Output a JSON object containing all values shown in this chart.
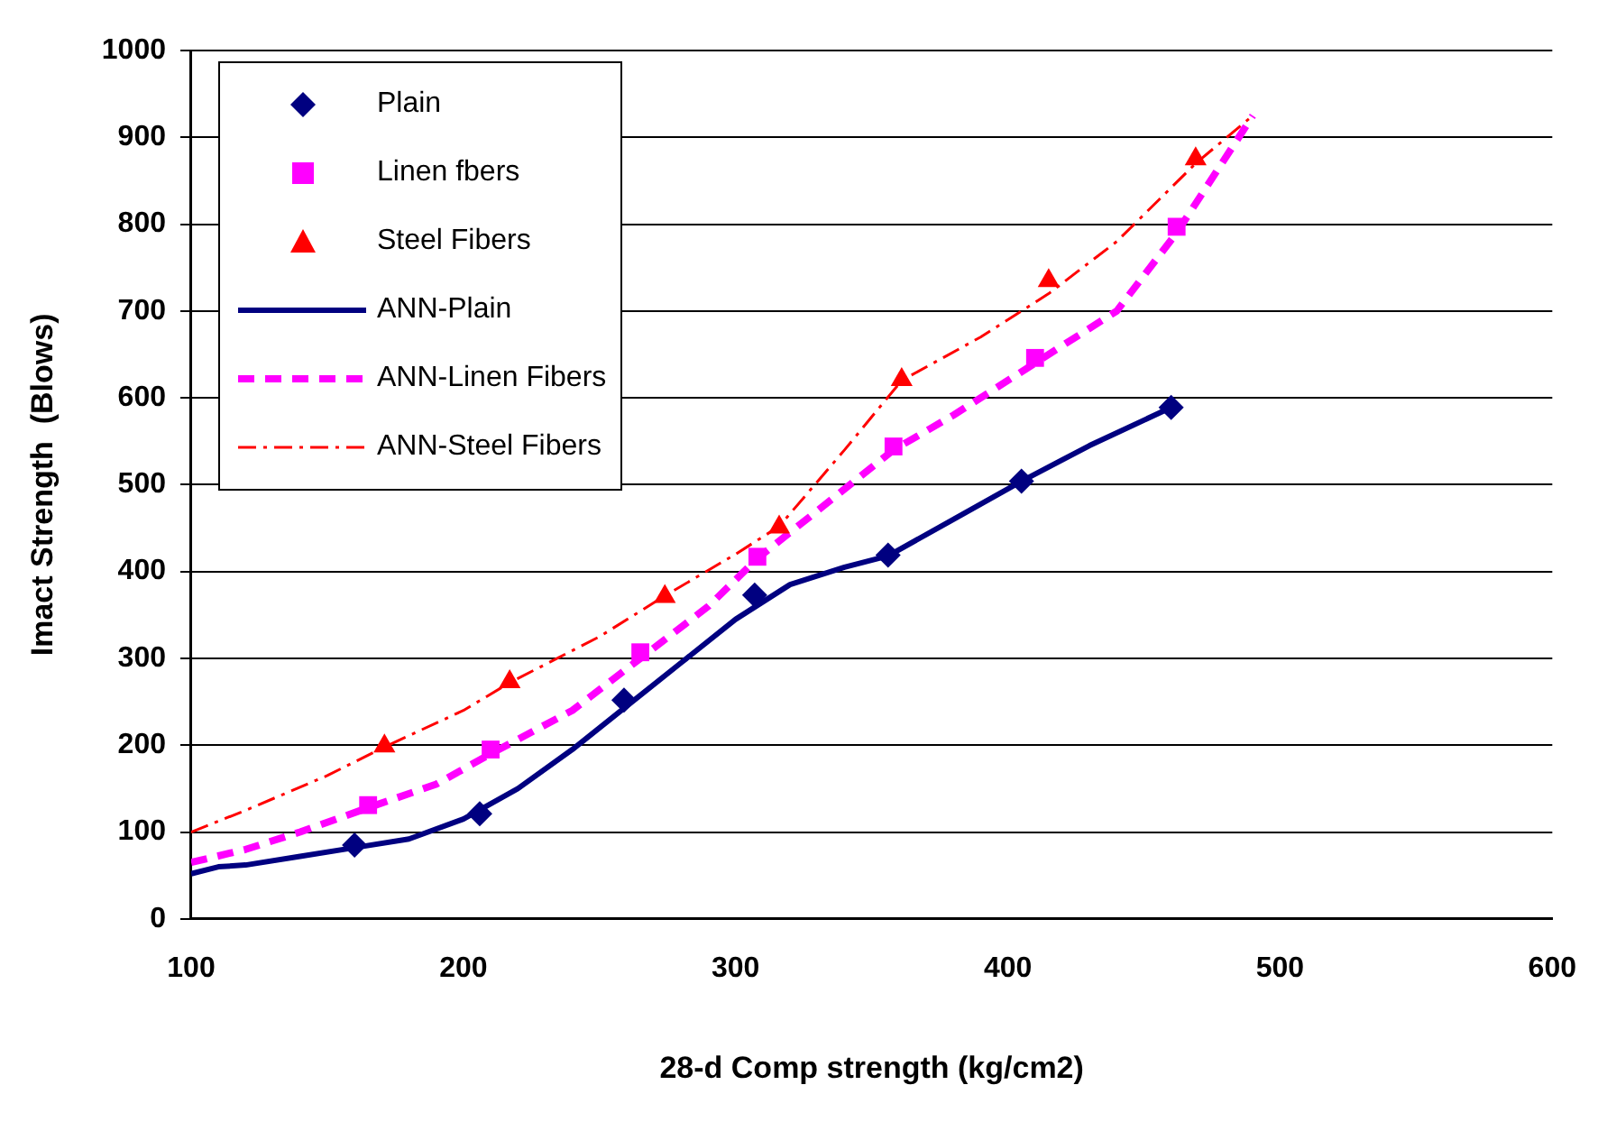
{
  "chart_data": {
    "type": "scatter",
    "xlabel": "28-d Comp strength (kg/cm2)",
    "ylabel": "Imact Strength  (Blows)",
    "xlim": [
      100,
      600
    ],
    "xticks": [
      100,
      200,
      300,
      400,
      500,
      600
    ],
    "ylim": [
      0,
      1000
    ],
    "yticks": [
      0,
      100,
      200,
      300,
      400,
      500,
      600,
      700,
      800,
      900,
      1000
    ],
    "grid": "y",
    "legend": "top left",
    "series": [
      {
        "name": "Plain",
        "marker": "diamond",
        "color": "#000080",
        "x": [
          160,
          206,
          259,
          307,
          356,
          405,
          460
        ],
        "values": [
          85,
          121,
          252,
          373,
          419,
          504,
          589
        ]
      },
      {
        "name": "Linen fbers",
        "marker": "square",
        "color": "#ff00ff",
        "x": [
          165,
          210,
          265,
          308,
          358,
          410,
          462
        ],
        "values": [
          131,
          195,
          307,
          417,
          544,
          646,
          797
        ]
      },
      {
        "name": "Steel Fibers",
        "marker": "triangle",
        "color": "#ff0000",
        "x": [
          171,
          217,
          274,
          316,
          361,
          415,
          469
        ],
        "values": [
          199,
          273,
          371,
          451,
          621,
          735,
          875
        ]
      },
      {
        "name": "ANN-Plain",
        "type": "line",
        "marker": "none",
        "line_style": "solid",
        "color": "#000080",
        "x": [
          100,
          110,
          120,
          140,
          160,
          180,
          200,
          220,
          240,
          260,
          280,
          300,
          320,
          340,
          356,
          380,
          405,
          430,
          460
        ],
        "values": [
          52,
          60,
          62,
          72,
          82,
          92,
          115,
          150,
          195,
          245,
          295,
          345,
          385,
          405,
          418,
          460,
          504,
          545,
          589
        ]
      },
      {
        "name": "ANN-Linen Fibers",
        "type": "line",
        "marker": "none",
        "line_style": "dashed",
        "color": "#ff00ff",
        "x": [
          100,
          120,
          140,
          165,
          190,
          210,
          240,
          265,
          290,
          308,
          330,
          358,
          380,
          410,
          440,
          462,
          490
        ],
        "values": [
          65,
          80,
          100,
          128,
          155,
          190,
          240,
          300,
          360,
          415,
          470,
          540,
          580,
          640,
          700,
          790,
          925
        ]
      },
      {
        "name": "ANN-Steel Fibers",
        "type": "line",
        "marker": "none",
        "line_style": "dotted",
        "color": "#ff0000",
        "x": [
          100,
          120,
          150,
          171,
          200,
          217,
          250,
          274,
          300,
          316,
          340,
          361,
          390,
          415,
          440,
          469,
          490
        ],
        "values": [
          100,
          125,
          165,
          198,
          240,
          272,
          325,
          372,
          420,
          452,
          540,
          620,
          670,
          720,
          780,
          870,
          925
        ]
      }
    ]
  }
}
